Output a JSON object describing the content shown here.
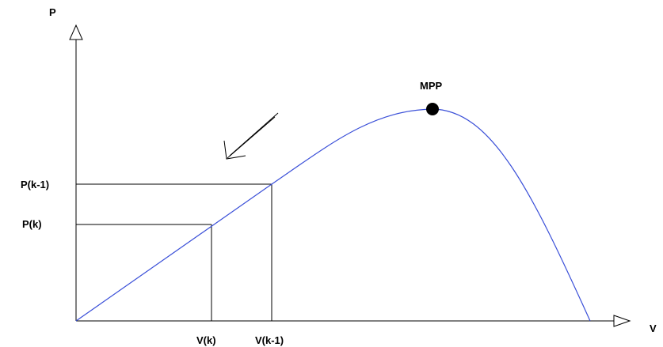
{
  "axes": {
    "y_label": "P",
    "x_label": "V"
  },
  "labels": {
    "p_prev": "P(k-1)",
    "p_curr": "P(k)",
    "v_curr": "V(k)",
    "v_prev": "V(k-1)",
    "mpp": "MPP"
  },
  "colors": {
    "curve": "#3a4fd8",
    "axes": "#000000",
    "mpp_point": "#000000"
  }
}
